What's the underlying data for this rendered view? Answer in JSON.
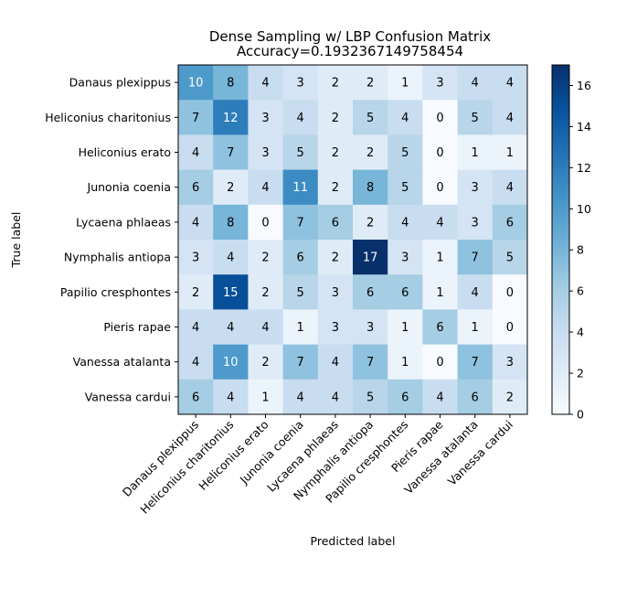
{
  "chart_data": {
    "type": "heatmap",
    "title": "Dense Sampling w/ LBP Confusion Matrix",
    "subtitle": "Accuracy=0.1932367149758454",
    "xlabel": "Predicted label",
    "ylabel": "True label",
    "row_labels": [
      "Danaus plexippus",
      "Heliconius charitonius",
      "Heliconius erato",
      "Junonia coenia",
      "Lycaena phlaeas",
      "Nymphalis antiopa",
      "Papilio cresphontes",
      "Pieris rapae",
      "Vanessa atalanta",
      "Vanessa cardui"
    ],
    "col_labels": [
      "Danaus plexippus",
      "Heliconius charitonius",
      "Heliconius erato",
      "Junonia coenia",
      "Lycaena phlaeas",
      "Nymphalis antiopa",
      "Papilio cresphontes",
      "Pieris rapae",
      "Vanessa atalanta",
      "Vanessa cardui"
    ],
    "values": [
      [
        10,
        8,
        4,
        3,
        2,
        2,
        1,
        3,
        4,
        4
      ],
      [
        7,
        12,
        3,
        4,
        2,
        5,
        4,
        0,
        5,
        4
      ],
      [
        4,
        7,
        3,
        5,
        2,
        2,
        5,
        0,
        1,
        1
      ],
      [
        6,
        2,
        4,
        11,
        2,
        8,
        5,
        0,
        3,
        4
      ],
      [
        4,
        8,
        0,
        7,
        6,
        2,
        4,
        4,
        3,
        6
      ],
      [
        3,
        4,
        2,
        6,
        2,
        17,
        3,
        1,
        7,
        5
      ],
      [
        2,
        15,
        2,
        5,
        3,
        6,
        6,
        1,
        4,
        0
      ],
      [
        4,
        4,
        4,
        1,
        3,
        3,
        1,
        6,
        1,
        0
      ],
      [
        4,
        10,
        2,
        7,
        4,
        7,
        1,
        0,
        7,
        3
      ],
      [
        6,
        4,
        1,
        4,
        4,
        5,
        6,
        4,
        6,
        2
      ]
    ],
    "colormap": "Blues",
    "vmin": 0,
    "vmax": 17,
    "colorbar_ticks": [
      0,
      2,
      4,
      6,
      8,
      10,
      12,
      14,
      16
    ],
    "text_threshold": 8.5,
    "text_color_dark": "#000000",
    "text_color_light": "#ffffff"
  }
}
